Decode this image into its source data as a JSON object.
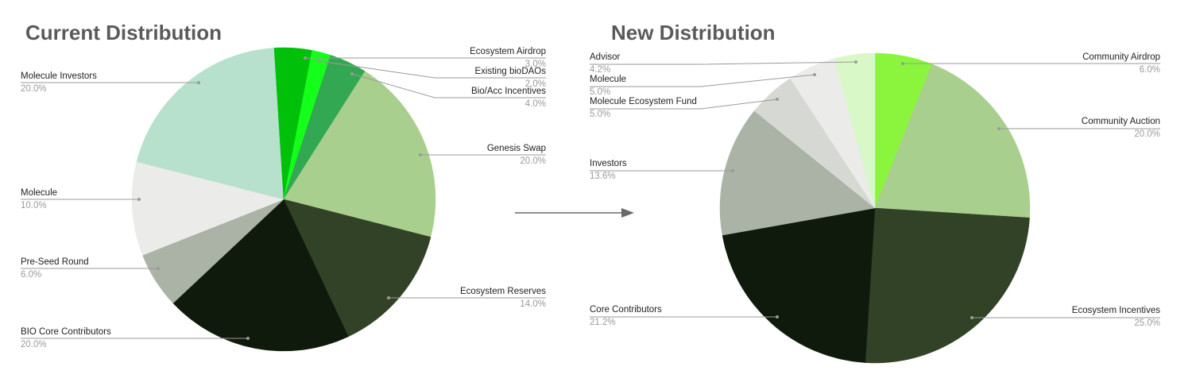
{
  "chart_data": [
    {
      "type": "pie",
      "title": "Current Distribution",
      "slices": [
        {
          "label": "Ecosystem Airdrop",
          "value": 3.0,
          "pct_text": "3.0%",
          "color": "#00c00a"
        },
        {
          "label": "Existing bioDAOs",
          "value": 2.0,
          "pct_text": "2.0%",
          "color": "#14ff1a"
        },
        {
          "label": "Bio/Acc Incentives",
          "value": 4.0,
          "pct_text": "4.0%",
          "color": "#33a853"
        },
        {
          "label": "Genesis Swap",
          "value": 20.0,
          "pct_text": "20.0%",
          "color": "#a9cf8e"
        },
        {
          "label": "Ecosystem Reserves",
          "value": 14.0,
          "pct_text": "14.0%",
          "color": "#324226"
        },
        {
          "label": "BIO Core Contributors",
          "value": 20.0,
          "pct_text": "20.0%",
          "color": "#0f1a0c"
        },
        {
          "label": "Pre-Seed Round",
          "value": 6.0,
          "pct_text": "6.0%",
          "color": "#aab3a6"
        },
        {
          "label": "Molecule",
          "value": 10.0,
          "pct_text": "10.0%",
          "color": "#ebebea"
        },
        {
          "label": "Molecule Investors",
          "value": 20.0,
          "pct_text": "20.0%",
          "color": "#b7e1cd"
        },
        {
          "label": "",
          "value": 1.0,
          "pct_text": "",
          "color": "#00c00a"
        }
      ]
    },
    {
      "type": "pie",
      "title": "New Distribution",
      "slices": [
        {
          "label": "Community Airdrop",
          "value": 6.0,
          "pct_text": "6.0%",
          "color": "#8af53c"
        },
        {
          "label": "Community Auction",
          "value": 20.0,
          "pct_text": "20.0%",
          "color": "#a9cf8e"
        },
        {
          "label": "Ecosystem Incentives",
          "value": 25.0,
          "pct_text": "25.0%",
          "color": "#324226"
        },
        {
          "label": "Core Contributors",
          "value": 21.2,
          "pct_text": "21.2%",
          "color": "#0f1a0c"
        },
        {
          "label": "Investors",
          "value": 13.6,
          "pct_text": "13.6%",
          "color": "#aab3a6"
        },
        {
          "label": "Molecule Ecosystem Fund",
          "value": 5.0,
          "pct_text": "5.0%",
          "color": "#d6d8d3"
        },
        {
          "label": "Molecule",
          "value": 5.0,
          "pct_text": "5.0%",
          "color": "#ebebea"
        },
        {
          "label": "Advisor",
          "value": 4.2,
          "pct_text": "4.2%",
          "color": "#d8f8c8"
        }
      ]
    }
  ],
  "colors": {
    "title": "#5a5a5a",
    "arrow": "#6a6a6a",
    "leader": "#9a9a9a"
  },
  "icons": {
    "transition": "right-arrow-icon"
  }
}
